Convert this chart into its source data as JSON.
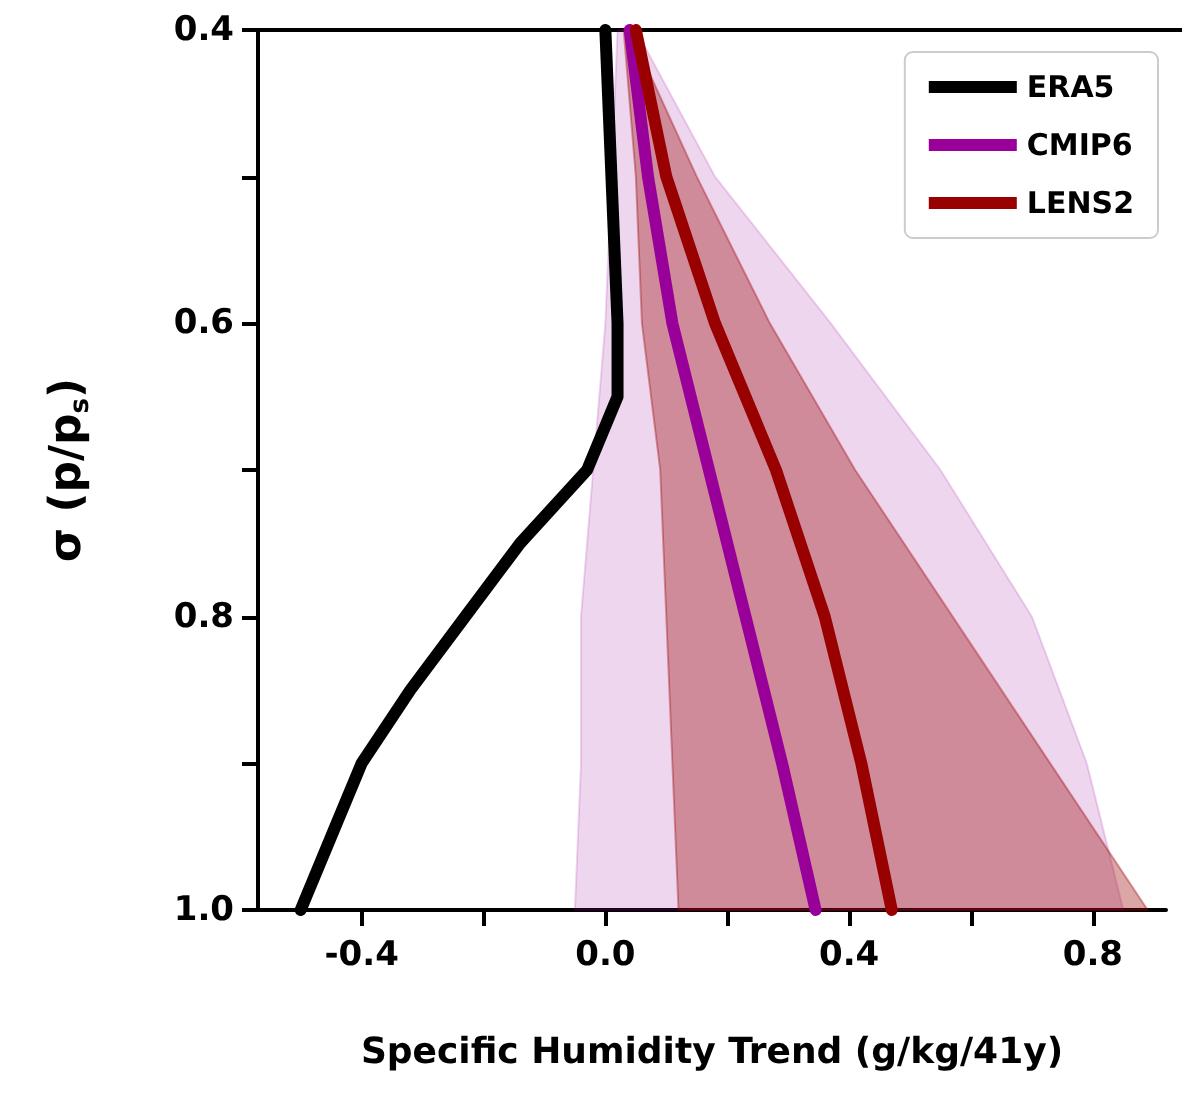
{
  "chart_data": {
    "type": "line",
    "orientation": "horizontal",
    "xlabel": "Specific Humidity Trend (g/kg/41y)",
    "ylabel": "σ (p/p$_{s}$)",
    "xlim": [
      -0.57,
      0.92
    ],
    "ylim": [
      1.0,
      0.4
    ],
    "xticks": [
      -0.4,
      {
        "value": -0.2,
        "label": null
      },
      {
        "value": 0,
        "label": "0.0"
      },
      {
        "value": 0.2,
        "label": null
      },
      0.4,
      {
        "value": 0.6,
        "label": null
      },
      0.8
    ],
    "yticks": [
      0.4,
      {
        "value": 0.5,
        "label": null
      },
      0.6,
      {
        "value": 0.7,
        "label": null
      },
      0.8,
      {
        "value": 0.9,
        "label": null
      },
      {
        "value": 1.0,
        "label": "1.0"
      }
    ],
    "grid": false,
    "legend": "top right",
    "marker": "none",
    "line_style": "solid",
    "series": [
      {
        "name": "ERA5",
        "color": "#000000",
        "x": [
          0.4,
          0.5,
          0.6,
          0.65,
          0.7,
          0.75,
          0.8,
          0.85,
          0.9,
          0.95,
          1.0
        ],
        "values": [
          0.0,
          0.01,
          0.02,
          0.02,
          -0.03,
          -0.14,
          -0.23,
          -0.32,
          -0.4,
          -0.45,
          -0.5
        ]
      },
      {
        "name": "CMIP6",
        "color": "#990099",
        "x": [
          0.4,
          0.5,
          0.6,
          0.7,
          0.8,
          0.9,
          1.0
        ],
        "values": [
          0.04,
          0.07,
          0.11,
          0.17,
          0.23,
          0.29,
          0.345
        ],
        "lower": [
          0.02,
          0.01,
          0.0,
          -0.02,
          -0.04,
          -0.04,
          -0.05
        ],
        "upper": [
          0.05,
          0.18,
          0.37,
          0.55,
          0.7,
          0.79,
          0.85
        ]
      },
      {
        "name": "LENS2",
        "color": "#990000",
        "x": [
          0.4,
          0.5,
          0.6,
          0.7,
          0.8,
          0.9,
          1.0
        ],
        "values": [
          0.05,
          0.1,
          0.18,
          0.28,
          0.36,
          0.42,
          0.47
        ],
        "lower": [
          0.03,
          0.05,
          0.06,
          0.09,
          0.1,
          0.11,
          0.12
        ],
        "upper": [
          0.04,
          0.15,
          0.27,
          0.41,
          0.57,
          0.73,
          0.89
        ]
      }
    ]
  }
}
